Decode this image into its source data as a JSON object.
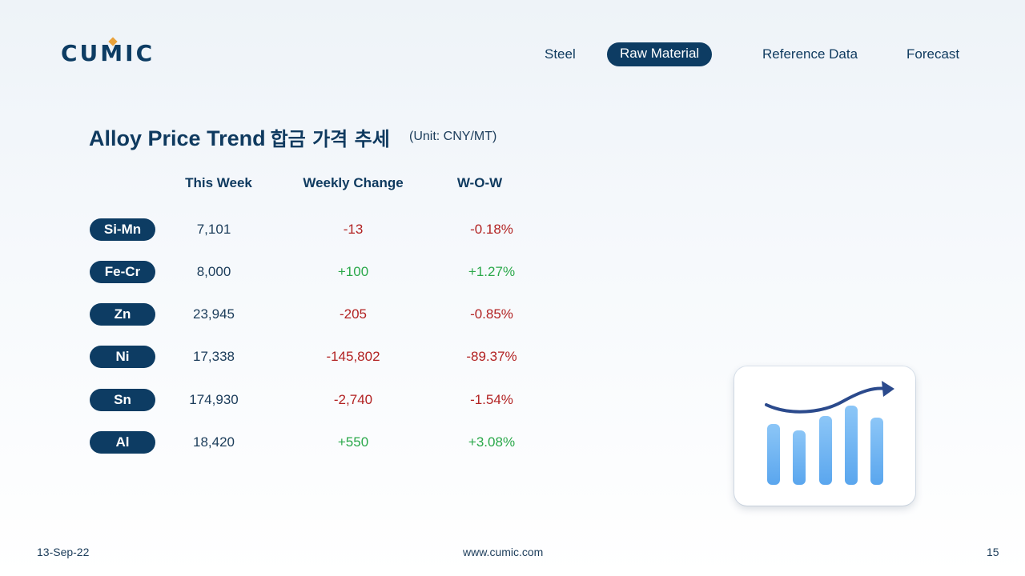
{
  "brand": {
    "logo_text": "CUMIC"
  },
  "nav": {
    "items": [
      {
        "label": "Steel",
        "active": false
      },
      {
        "label": "Raw Material",
        "active": true
      },
      {
        "label": "Reference Data",
        "active": false
      },
      {
        "label": "Forecast",
        "active": false
      }
    ]
  },
  "section": {
    "title": "Alloy Price Trend",
    "title_korean": "합금 가격 추세",
    "unit": "(Unit: CNY/MT)"
  },
  "table": {
    "headers": [
      "This Week",
      "Weekly Change",
      "W-O-W"
    ],
    "rows": [
      {
        "name": "Si-Mn",
        "this_week": "7,101",
        "weekly_change": "-13",
        "wow": "-0.18%"
      },
      {
        "name": "Fe-Cr",
        "this_week": "8,000",
        "weekly_change": "+100",
        "wow": "+1.27%"
      },
      {
        "name": "Zn",
        "this_week": "23,945",
        "weekly_change": "-205",
        "wow": "-0.85%"
      },
      {
        "name": "Ni",
        "this_week": "17,338",
        "weekly_change": "-145,802",
        "wow": "-89.37%"
      },
      {
        "name": "Sn",
        "this_week": "174,930",
        "weekly_change": "-2,740",
        "wow": "-1.54%"
      },
      {
        "name": "Al",
        "this_week": "18,420",
        "weekly_change": "+550",
        "wow": "+3.08%"
      }
    ]
  },
  "illustration": {
    "icon": "growth-chart-icon"
  },
  "footer": {
    "date": "13-Sep-22",
    "website": "www.cumic.com",
    "page_number": "15"
  },
  "colors": {
    "navy": "#0d3c63",
    "negative": "#b22222",
    "positive": "#2aa84a",
    "accent": "#e9a23b",
    "bar_blue": "#6bb2f2"
  }
}
